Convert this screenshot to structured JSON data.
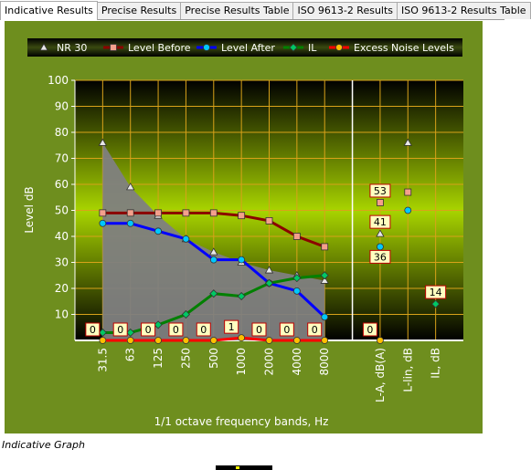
{
  "tabs": [
    "Indicative Results",
    "Precise Results",
    "Precise Results Table",
    "ISO 9613-2 Results",
    "ISO 9613-2 Results Table"
  ],
  "caption": "Indicative Graph",
  "chart_data": {
    "type": "line",
    "ylabel": "Level dB",
    "xlabel": "1/1 octave frequency bands, Hz",
    "categories": [
      "31.5",
      "63",
      "125",
      "250",
      "500",
      "1000",
      "2000",
      "4000",
      "8000",
      null,
      "L-A, dB(A)",
      "L-lin, dB",
      "IL, dB"
    ],
    "ylim": [
      0,
      100
    ],
    "yticks": [
      10,
      20,
      30,
      40,
      50,
      60,
      70,
      80,
      90,
      100
    ],
    "grid": true,
    "series": [
      {
        "name": "NR 30",
        "color": "#808080",
        "marker": "triangle",
        "marker_color": "#e8e8e8",
        "values": [
          76,
          59,
          48,
          39,
          34,
          30,
          27,
          25,
          23,
          null,
          41,
          76,
          null
        ]
      },
      {
        "name": "Level Before",
        "color": "#8b0000",
        "marker": "square",
        "marker_color": "#f4a08c",
        "values": [
          49,
          49,
          49,
          49,
          49,
          48,
          46,
          40,
          36,
          null,
          53,
          57,
          null
        ]
      },
      {
        "name": "Level After",
        "color": "#0000ff",
        "marker": "circle",
        "marker_color": "#00c8ff",
        "values": [
          45,
          45,
          42,
          39,
          31,
          31,
          22,
          19,
          9,
          null,
          36,
          50,
          null
        ]
      },
      {
        "name": "IL",
        "color": "#008000",
        "marker": "diamond",
        "marker_color": "#00c864",
        "values": [
          3,
          3,
          6,
          10,
          18,
          17,
          22,
          24,
          25,
          null,
          null,
          null,
          14
        ]
      },
      {
        "name": "Excess Noise Levels",
        "color": "#ff0000",
        "marker": "circle",
        "marker_color": "#ffc000",
        "values": [
          0,
          0,
          0,
          0,
          0,
          1,
          0,
          0,
          0,
          null,
          0,
          null,
          null
        ]
      }
    ]
  }
}
